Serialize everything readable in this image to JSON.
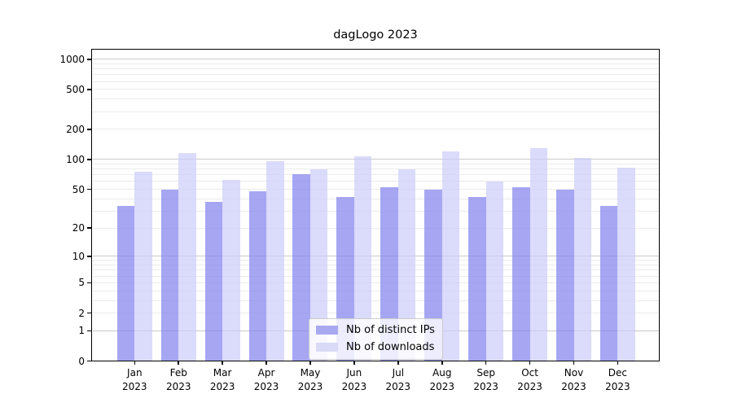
{
  "title": "dagLogo 2023",
  "chart_data": {
    "type": "bar",
    "title": "dagLogo 2023",
    "categories": [
      "Jan",
      "Feb",
      "Mar",
      "Apr",
      "May",
      "Jun",
      "Jul",
      "Aug",
      "Sep",
      "Oct",
      "Nov",
      "Dec"
    ],
    "xtick_second_line": "2023",
    "series": [
      {
        "name": "Nb of distinct IPs",
        "color": "#8484ee",
        "css": "rgba(132,132,238,0.72)",
        "swatch": "#a9a9f1",
        "values": [
          34,
          50,
          37,
          48,
          71,
          42,
          52,
          50,
          42,
          52,
          50,
          34
        ]
      },
      {
        "name": "Nb of downloads",
        "color": "#cdcdf9",
        "css": "rgba(205,205,249,0.72)",
        "swatch": "#d9d9f8",
        "values": [
          75,
          116,
          62,
          96,
          80,
          107,
          80,
          121,
          60,
          129,
          104,
          83
        ]
      }
    ],
    "bar_alpha": 0.72,
    "scale": "log1p",
    "yticks": [
      1000,
      500,
      200,
      100,
      50,
      20,
      10,
      5,
      2,
      1,
      0
    ],
    "ylim": [
      0,
      1267
    ],
    "grid": true,
    "major_grid_values": [
      1,
      10,
      100,
      1000
    ],
    "major_grid_color": "#c9c9c9",
    "minor_grid_color": "#ebebeb",
    "axis_color": "#000000",
    "legend_position": "lower center"
  }
}
